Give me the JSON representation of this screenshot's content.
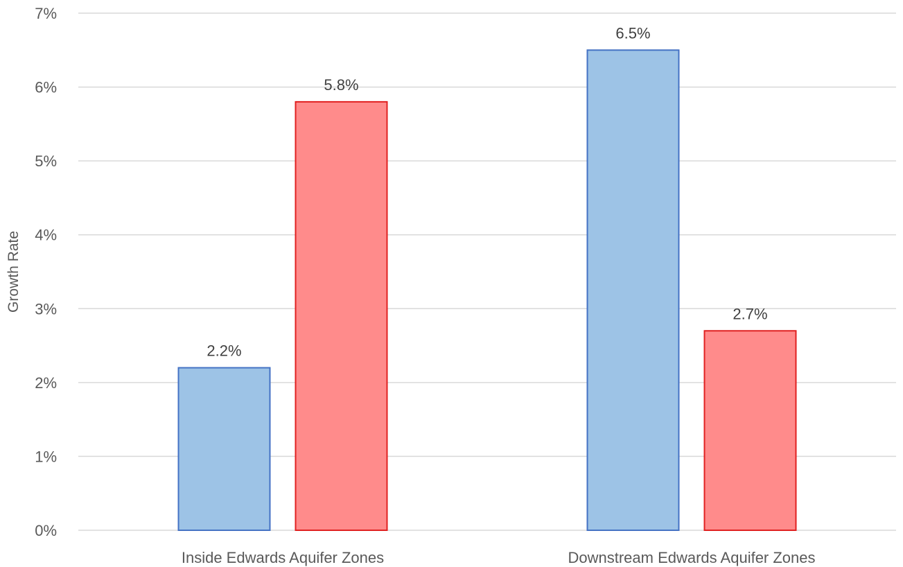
{
  "chart_data": {
    "type": "bar",
    "title": "",
    "xlabel": "",
    "ylabel": "Growth Rate",
    "categories": [
      "Inside Edwards Aquifer Zones",
      "Downstream Edwards Aquifer Zones"
    ],
    "series": [
      {
        "values": [
          2.2,
          6.5
        ],
        "data_labels": [
          "2.2%",
          "6.5%"
        ],
        "fill": "#9dc3e6",
        "stroke": "#4472c4"
      },
      {
        "values": [
          5.8,
          2.7
        ],
        "data_labels": [
          "5.8%",
          "2.7%"
        ],
        "fill": "#ff8b8b",
        "stroke": "#e02020"
      }
    ],
    "ylim": [
      0,
      7
    ],
    "yticks": [
      0,
      1,
      2,
      3,
      4,
      5,
      6,
      7
    ],
    "ytick_labels": [
      "0%",
      "1%",
      "2%",
      "3%",
      "4%",
      "5%",
      "6%",
      "7%"
    ],
    "grid": true,
    "legend": "none",
    "gridline_color": "#d9d9d9"
  }
}
